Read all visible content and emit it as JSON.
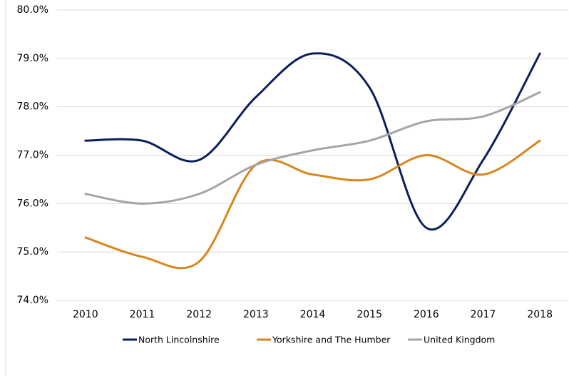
{
  "chart_data": {
    "type": "line",
    "categories": [
      "2010",
      "2011",
      "2012",
      "2013",
      "2014",
      "2015",
      "2016",
      "2017",
      "2018"
    ],
    "series": [
      {
        "name": "North Lincolnshire",
        "color": "#0b1f5c",
        "values": [
          77.3,
          77.3,
          76.9,
          78.2,
          79.1,
          78.4,
          75.5,
          76.9,
          79.1
        ]
      },
      {
        "name": "Yorkshire and The Humber",
        "color": "#d9861c",
        "values": [
          75.3,
          74.9,
          74.8,
          76.8,
          76.6,
          76.5,
          77.0,
          76.6,
          77.3
        ]
      },
      {
        "name": "United Kingdom",
        "color": "#a5a5a5",
        "values": [
          76.2,
          76.0,
          76.2,
          76.8,
          77.1,
          77.3,
          77.7,
          77.8,
          78.3
        ]
      }
    ],
    "ylim": [
      74,
      80
    ],
    "yticks": [
      {
        "value": 74,
        "label": "74.0%"
      },
      {
        "value": 75,
        "label": "75.0%"
      },
      {
        "value": 76,
        "label": "76.0%"
      },
      {
        "value": 77,
        "label": "77.0%"
      },
      {
        "value": 78,
        "label": "78.0%"
      },
      {
        "value": 79,
        "label": "79.0%"
      },
      {
        "value": 80,
        "label": "80.0%"
      }
    ],
    "grid": true,
    "smooth": true,
    "legend": "bottom"
  }
}
